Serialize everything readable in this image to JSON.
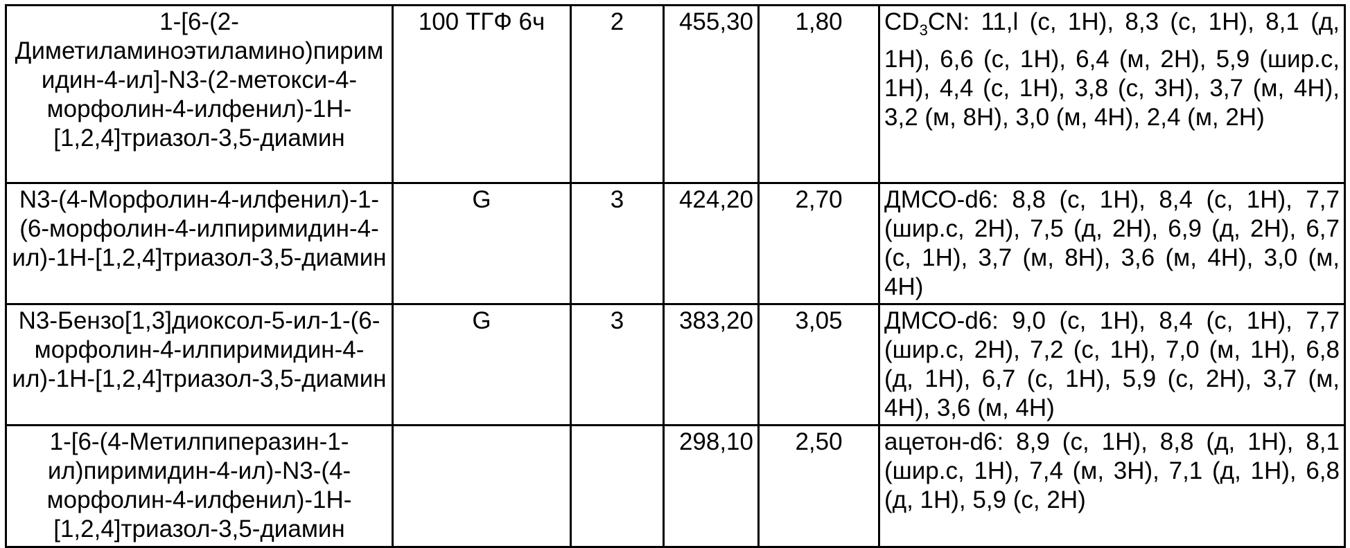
{
  "table": {
    "rows": [
      {
        "name": "1-[6-(2-Диметиламиноэтиламино)пиримидин-4-ил]-N3-(2-метокси-4-морфолин-4-илфенил)-1H-[1,2,4]триазол-3,5-диамин",
        "method": "100 ТГФ 6ч",
        "step": "2",
        "mass": "455,30",
        "time": "1,80",
        "nmr_solvent": "CD",
        "nmr_sub": "3",
        "nmr_solvent_rest": "CN",
        "nmr": ": 11,l (с, 1H), 8,3 (с, 1H), 8,1 (д, 1H), 6,6 (с, 1H), 6,4 (м, 2H), 5,9 (шир.с, 1H), 4,4 (с, 1H), 3,8 (с, 3H), 3,7 (м, 4H), 3,2 (м, 8H), 3,0 (м, 4H), 2,4 (м, 2H)"
      },
      {
        "name": "N3-(4-Морфолин-4-илфенил)-1-(6-морфолин-4-илпиримидин-4-ил)-1H-[1,2,4]триазол-3,5-диамин",
        "method": "G",
        "step": "3",
        "mass": "424,20",
        "time": "2,70",
        "nmr": "ДМСО-d6: 8,8 (с, 1H), 8,4 (с, 1H), 7,7 (шир.с, 2H), 7,5 (д, 2H), 6,9 (д, 2H), 6,7 (с, 1H), 3,7 (м, 8H), 3,6 (м, 4H), 3,0 (м, 4H)"
      },
      {
        "name": "N3-Бензо[1,3]диоксол-5-ил-1-(6-морфолин-4-илпиримидин-4-ил)-1H-[1,2,4]триазол-3,5-диамин",
        "method": "G",
        "step": "3",
        "mass": "383,20",
        "time": "3,05",
        "nmr": "ДМСО-d6: 9,0 (с, 1H), 8,4 (с, 1H), 7,7 (шир.с, 2H), 7,2 (с, 1H), 7,0 (м, 1H), 6,8 (д, 1H), 6,7 (с, 1H), 5,9 (с, 2H), 3,7 (м, 4H), 3,6 (м, 4H)"
      },
      {
        "name": "1-[6-(4-Метилпиперазин-1-ил)пиримидин-4-ил)-N3-(4-морфолин-4-илфенил)-1H-[1,2,4]триазол-3,5-диамин",
        "method": "",
        "step": "",
        "mass": "298,10",
        "time": "2,50",
        "nmr": "ацетон-d6: 8,9 (с, 1H), 8,8 (д, 1H), 8,1 (шир.с, 1H), 7,4 (м, 3H), 7,1 (д, 1H), 6,8 (д, 1H), 5,9 (с, 2H)"
      }
    ]
  }
}
